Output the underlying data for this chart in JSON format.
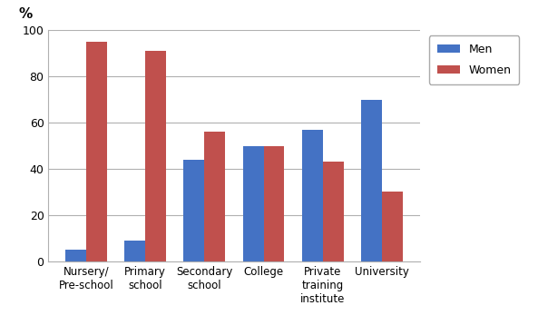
{
  "categories": [
    "Nursery/\nPre-school",
    "Primary\nschool",
    "Secondary\nschool",
    "College",
    "Private\ntraining\ninstitute",
    "University"
  ],
  "men_values": [
    5,
    9,
    44,
    50,
    57,
    70
  ],
  "women_values": [
    95,
    91,
    56,
    50,
    43,
    30
  ],
  "men_color": "#4472C4",
  "women_color": "#C0504D",
  "ylabel": "%",
  "ylim": [
    0,
    100
  ],
  "yticks": [
    0,
    20,
    40,
    60,
    80,
    100
  ],
  "legend_labels": [
    "Men",
    "Women"
  ],
  "bar_width": 0.35,
  "background_color": "#ffffff",
  "grid_color": "#b0b0b0"
}
